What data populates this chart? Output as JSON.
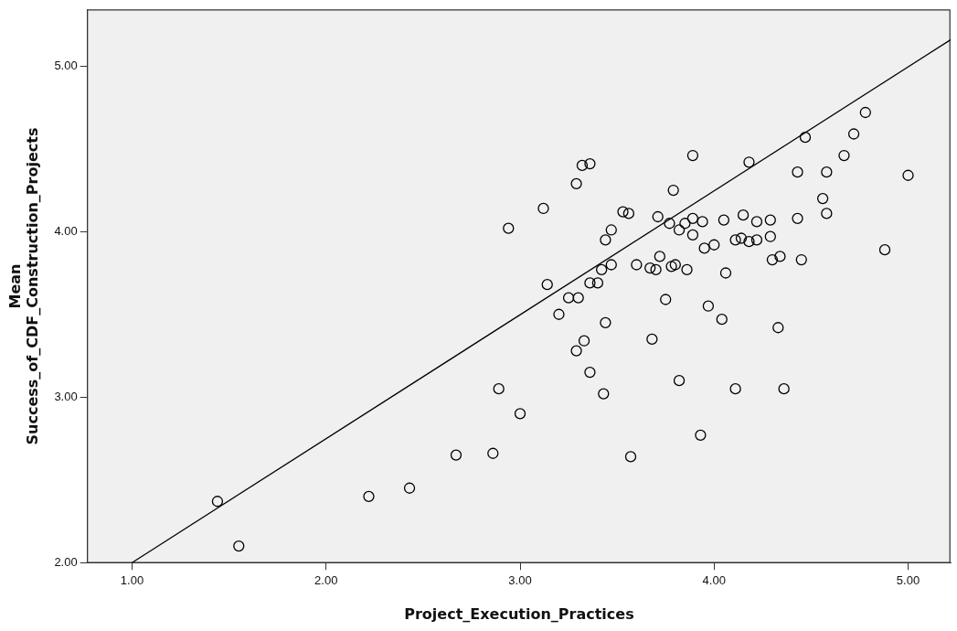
{
  "chart_data": {
    "type": "scatter",
    "xlabel": "Project_Execution_Practices",
    "ylabel": "Mean Success_of_CDF_Construction_Projects",
    "xlim": [
      0.77,
      5.22
    ],
    "ylim": [
      2,
      5.34
    ],
    "xticks": [
      {
        "value": 1,
        "label": "1.00"
      },
      {
        "value": 2,
        "label": "2.00"
      },
      {
        "value": 3,
        "label": "3.00"
      },
      {
        "value": 4,
        "label": "4.00"
      },
      {
        "value": 5,
        "label": "5.00"
      }
    ],
    "yticks": [
      {
        "value": 2,
        "label": "2.00"
      },
      {
        "value": 3,
        "label": "3.00"
      },
      {
        "value": 4,
        "label": "4.00"
      },
      {
        "value": 5,
        "label": "5.00"
      }
    ],
    "grid": false,
    "legend": false,
    "marker": "circle",
    "series": [
      {
        "color": "#000000",
        "x": [
          1.44,
          1.55,
          2.22,
          2.43,
          2.67,
          2.86,
          2.89,
          3.0,
          2.94,
          3.12,
          3.29,
          3.32,
          3.36,
          3.53,
          3.56,
          3.47,
          3.44,
          3.47,
          3.42,
          3.36,
          3.4,
          3.14,
          3.25,
          3.3,
          3.2,
          3.44,
          3.33,
          3.29,
          3.36,
          3.43,
          3.57,
          3.68,
          3.75,
          3.6,
          3.67,
          3.7,
          3.72,
          3.78,
          3.8,
          3.86,
          3.71,
          3.77,
          3.79,
          3.82,
          3.85,
          3.89,
          3.94,
          3.89,
          3.89,
          3.95,
          4.0,
          4.05,
          3.97,
          4.04,
          4.06,
          3.82,
          3.93,
          4.11,
          4.36,
          4.78,
          4.72,
          4.67,
          4.47,
          4.18,
          4.43,
          4.58,
          5.0,
          4.56,
          4.58,
          4.43,
          4.15,
          4.22,
          4.29,
          4.29,
          4.11,
          4.14,
          4.18,
          4.22,
          4.3,
          4.34,
          4.45,
          4.88,
          4.33
        ],
        "values": [
          2.37,
          2.1,
          2.4,
          2.45,
          2.65,
          2.66,
          3.05,
          2.9,
          4.02,
          4.14,
          4.29,
          4.4,
          4.41,
          4.12,
          4.11,
          4.01,
          3.95,
          3.8,
          3.77,
          3.69,
          3.69,
          3.68,
          3.6,
          3.6,
          3.5,
          3.45,
          3.34,
          3.28,
          3.15,
          3.02,
          2.64,
          3.35,
          3.59,
          3.8,
          3.78,
          3.77,
          3.85,
          3.79,
          3.8,
          3.77,
          4.09,
          4.05,
          4.25,
          4.01,
          4.05,
          4.08,
          4.06,
          3.98,
          4.46,
          3.9,
          3.92,
          4.07,
          3.55,
          3.47,
          3.75,
          3.1,
          2.77,
          3.05,
          3.05,
          4.72,
          4.59,
          4.46,
          4.57,
          4.42,
          4.36,
          4.36,
          4.34,
          4.2,
          4.11,
          4.08,
          4.1,
          4.06,
          4.07,
          3.97,
          3.95,
          3.96,
          3.94,
          3.95,
          3.83,
          3.85,
          3.83,
          3.89,
          3.42
        ]
      },
      {
        "type": "line",
        "marker": "none",
        "color": "#000000",
        "x": [
          1,
          5.22
        ],
        "values": [
          2,
          5.16
        ]
      }
    ]
  }
}
